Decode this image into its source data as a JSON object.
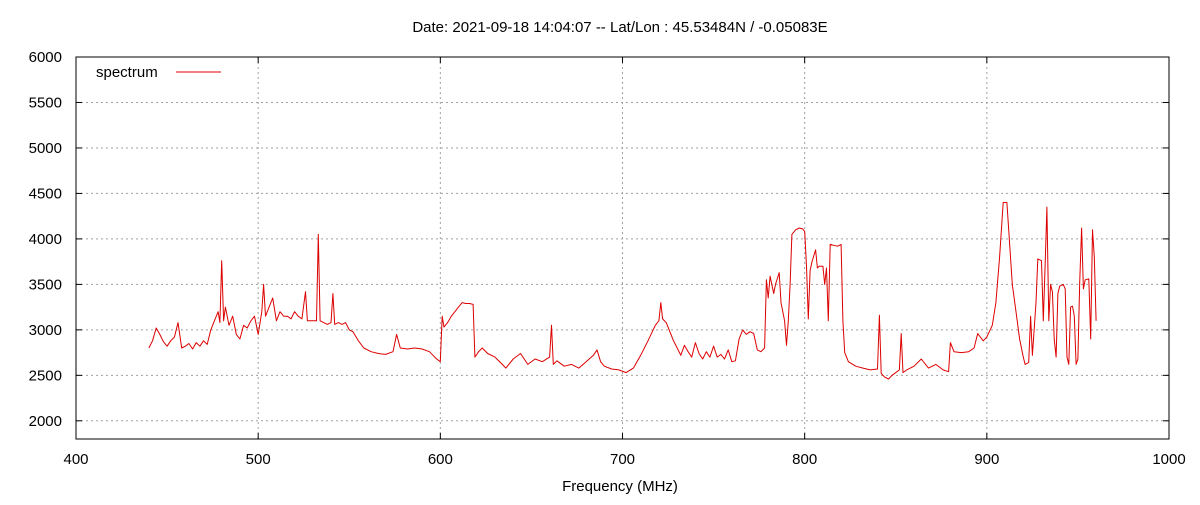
{
  "chart_data": {
    "type": "line",
    "title": "Date: 2021-09-18 14:04:07  --  Lat/Lon : 45.53484N / -0.05083E",
    "xlabel": "Frequency (MHz)",
    "ylabel": "",
    "xlim": [
      400,
      1000
    ],
    "ylim": [
      1800,
      6000
    ],
    "xticks": [
      400,
      500,
      600,
      700,
      800,
      900,
      1000
    ],
    "yticks": [
      2000,
      2500,
      3000,
      3500,
      4000,
      4500,
      5000,
      5500,
      6000
    ],
    "grid": true,
    "legend_position": "top-left",
    "series": [
      {
        "name": "spectrum",
        "color": "#dd0000",
        "points": [
          [
            440,
            2800
          ],
          [
            442,
            2880
          ],
          [
            444,
            3020
          ],
          [
            446,
            2950
          ],
          [
            448,
            2870
          ],
          [
            450,
            2820
          ],
          [
            452,
            2880
          ],
          [
            454,
            2920
          ],
          [
            456,
            3080
          ],
          [
            458,
            2800
          ],
          [
            460,
            2820
          ],
          [
            462,
            2850
          ],
          [
            464,
            2790
          ],
          [
            466,
            2860
          ],
          [
            468,
            2820
          ],
          [
            470,
            2880
          ],
          [
            472,
            2840
          ],
          [
            474,
            3000
          ],
          [
            476,
            3100
          ],
          [
            478,
            3200
          ],
          [
            479,
            3080
          ],
          [
            480,
            3760
          ],
          [
            481,
            3100
          ],
          [
            482,
            3250
          ],
          [
            484,
            3050
          ],
          [
            486,
            3150
          ],
          [
            488,
            2950
          ],
          [
            490,
            2900
          ],
          [
            492,
            3050
          ],
          [
            494,
            3020
          ],
          [
            496,
            3100
          ],
          [
            498,
            3150
          ],
          [
            500,
            2950
          ],
          [
            502,
            3200
          ],
          [
            503,
            3500
          ],
          [
            504,
            3150
          ],
          [
            506,
            3250
          ],
          [
            508,
            3350
          ],
          [
            510,
            3100
          ],
          [
            512,
            3200
          ],
          [
            514,
            3150
          ],
          [
            516,
            3150
          ],
          [
            518,
            3120
          ],
          [
            520,
            3200
          ],
          [
            522,
            3150
          ],
          [
            524,
            3120
          ],
          [
            526,
            3420
          ],
          [
            527,
            3100
          ],
          [
            530,
            3100
          ],
          [
            532,
            3100
          ],
          [
            533,
            4050
          ],
          [
            534,
            3100
          ],
          [
            536,
            3080
          ],
          [
            538,
            3060
          ],
          [
            540,
            3080
          ],
          [
            541,
            3400
          ],
          [
            542,
            3060
          ],
          [
            544,
            3080
          ],
          [
            546,
            3060
          ],
          [
            548,
            3080
          ],
          [
            550,
            3000
          ],
          [
            552,
            2980
          ],
          [
            555,
            2880
          ],
          [
            558,
            2800
          ],
          [
            562,
            2760
          ],
          [
            566,
            2740
          ],
          [
            570,
            2730
          ],
          [
            574,
            2760
          ],
          [
            576,
            2950
          ],
          [
            578,
            2800
          ],
          [
            582,
            2790
          ],
          [
            586,
            2800
          ],
          [
            590,
            2790
          ],
          [
            594,
            2760
          ],
          [
            596,
            2720
          ],
          [
            598,
            2680
          ],
          [
            600,
            2650
          ],
          [
            601,
            3150
          ],
          [
            602,
            3030
          ],
          [
            604,
            3080
          ],
          [
            606,
            3150
          ],
          [
            608,
            3200
          ],
          [
            610,
            3250
          ],
          [
            612,
            3300
          ],
          [
            614,
            3290
          ],
          [
            616,
            3290
          ],
          [
            618,
            3280
          ],
          [
            619,
            2700
          ],
          [
            621,
            2760
          ],
          [
            623,
            2800
          ],
          [
            626,
            2740
          ],
          [
            630,
            2700
          ],
          [
            634,
            2620
          ],
          [
            636,
            2580
          ],
          [
            640,
            2680
          ],
          [
            644,
            2740
          ],
          [
            648,
            2620
          ],
          [
            652,
            2680
          ],
          [
            656,
            2650
          ],
          [
            660,
            2700
          ],
          [
            661,
            3050
          ],
          [
            662,
            2620
          ],
          [
            664,
            2660
          ],
          [
            668,
            2600
          ],
          [
            672,
            2620
          ],
          [
            676,
            2580
          ],
          [
            680,
            2650
          ],
          [
            684,
            2720
          ],
          [
            686,
            2780
          ],
          [
            688,
            2650
          ],
          [
            690,
            2600
          ],
          [
            694,
            2570
          ],
          [
            698,
            2560
          ],
          [
            702,
            2530
          ],
          [
            706,
            2580
          ],
          [
            710,
            2720
          ],
          [
            714,
            2880
          ],
          [
            718,
            3050
          ],
          [
            720,
            3100
          ],
          [
            721,
            3300
          ],
          [
            722,
            3120
          ],
          [
            724,
            3080
          ],
          [
            726,
            2980
          ],
          [
            728,
            2880
          ],
          [
            730,
            2800
          ],
          [
            732,
            2720
          ],
          [
            734,
            2830
          ],
          [
            736,
            2760
          ],
          [
            738,
            2700
          ],
          [
            740,
            2860
          ],
          [
            742,
            2740
          ],
          [
            744,
            2680
          ],
          [
            746,
            2760
          ],
          [
            748,
            2700
          ],
          [
            750,
            2820
          ],
          [
            752,
            2700
          ],
          [
            754,
            2730
          ],
          [
            756,
            2680
          ],
          [
            758,
            2780
          ],
          [
            760,
            2650
          ],
          [
            762,
            2660
          ],
          [
            764,
            2900
          ],
          [
            766,
            3000
          ],
          [
            768,
            2950
          ],
          [
            770,
            2980
          ],
          [
            772,
            2960
          ],
          [
            774,
            2780
          ],
          [
            776,
            2760
          ],
          [
            778,
            2800
          ],
          [
            779,
            3550
          ],
          [
            780,
            3350
          ],
          [
            781,
            3590
          ],
          [
            783,
            3400
          ],
          [
            784,
            3500
          ],
          [
            786,
            3630
          ],
          [
            787,
            3300
          ],
          [
            789,
            3100
          ],
          [
            790,
            2830
          ],
          [
            791,
            3100
          ],
          [
            792,
            3500
          ],
          [
            793,
            4050
          ],
          [
            795,
            4100
          ],
          [
            797,
            4120
          ],
          [
            799,
            4110
          ],
          [
            800,
            4080
          ],
          [
            801,
            3700
          ],
          [
            802,
            3120
          ],
          [
            803,
            3650
          ],
          [
            804,
            3750
          ],
          [
            806,
            3880
          ],
          [
            807,
            3680
          ],
          [
            808,
            3700
          ],
          [
            810,
            3700
          ],
          [
            811,
            3500
          ],
          [
            812,
            3680
          ],
          [
            813,
            3100
          ],
          [
            814,
            3940
          ],
          [
            816,
            3930
          ],
          [
            818,
            3920
          ],
          [
            820,
            3940
          ],
          [
            821,
            3100
          ],
          [
            822,
            2750
          ],
          [
            824,
            2650
          ],
          [
            828,
            2600
          ],
          [
            832,
            2580
          ],
          [
            836,
            2560
          ],
          [
            840,
            2570
          ],
          [
            841,
            3160
          ],
          [
            842,
            2520
          ],
          [
            844,
            2480
          ],
          [
            846,
            2460
          ],
          [
            848,
            2500
          ],
          [
            852,
            2560
          ],
          [
            853,
            2960
          ],
          [
            854,
            2530
          ],
          [
            856,
            2560
          ],
          [
            860,
            2600
          ],
          [
            864,
            2680
          ],
          [
            868,
            2580
          ],
          [
            872,
            2620
          ],
          [
            876,
            2560
          ],
          [
            879,
            2540
          ],
          [
            880,
            2860
          ],
          [
            882,
            2760
          ],
          [
            886,
            2750
          ],
          [
            890,
            2760
          ],
          [
            893,
            2800
          ],
          [
            895,
            2960
          ],
          [
            898,
            2880
          ],
          [
            900,
            2920
          ],
          [
            903,
            3050
          ],
          [
            905,
            3300
          ],
          [
            907,
            3800
          ],
          [
            909,
            4400
          ],
          [
            911,
            4400
          ],
          [
            912,
            4100
          ],
          [
            914,
            3500
          ],
          [
            916,
            3200
          ],
          [
            918,
            2900
          ],
          [
            920,
            2700
          ],
          [
            921,
            2620
          ],
          [
            923,
            2640
          ],
          [
            924,
            3150
          ],
          [
            925,
            2720
          ],
          [
            927,
            3300
          ],
          [
            928,
            3780
          ],
          [
            930,
            3760
          ],
          [
            931,
            3100
          ],
          [
            932,
            3700
          ],
          [
            933,
            4350
          ],
          [
            934,
            3100
          ],
          [
            935,
            3500
          ],
          [
            936,
            3420
          ],
          [
            937,
            2900
          ],
          [
            938,
            2700
          ],
          [
            939,
            3400
          ],
          [
            940,
            3480
          ],
          [
            942,
            3500
          ],
          [
            943,
            3450
          ],
          [
            944,
            2700
          ],
          [
            945,
            2620
          ],
          [
            946,
            3250
          ],
          [
            947,
            3260
          ],
          [
            948,
            3150
          ],
          [
            949,
            2620
          ],
          [
            950,
            2680
          ],
          [
            951,
            3520
          ],
          [
            952,
            4120
          ],
          [
            953,
            3450
          ],
          [
            954,
            3550
          ],
          [
            956,
            3560
          ],
          [
            957,
            2900
          ],
          [
            958,
            4100
          ],
          [
            959,
            3800
          ],
          [
            960,
            3100
          ]
        ]
      }
    ]
  }
}
